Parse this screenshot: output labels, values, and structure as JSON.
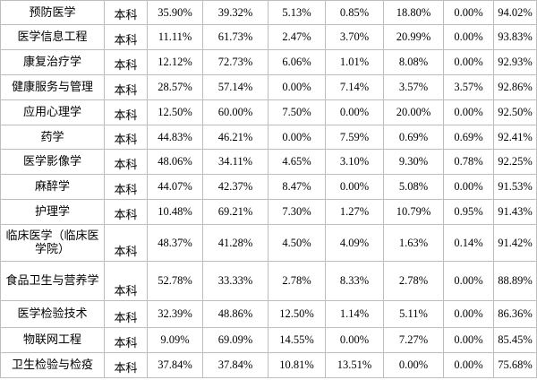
{
  "rows": [
    {
      "major": "预防医学",
      "degree": "本科",
      "c1": "35.90%",
      "c2": "39.32%",
      "c3": "5.13%",
      "c4": "0.85%",
      "c5": "18.80%",
      "c6": "0.00%",
      "total": "94.02%"
    },
    {
      "major": "医学信息工程",
      "degree": "本科",
      "c1": "11.11%",
      "c2": "61.73%",
      "c3": "2.47%",
      "c4": "3.70%",
      "c5": "20.99%",
      "c6": "0.00%",
      "total": "93.83%"
    },
    {
      "major": "康复治疗学",
      "degree": "本科",
      "c1": "12.12%",
      "c2": "72.73%",
      "c3": "6.06%",
      "c4": "1.01%",
      "c5": "8.08%",
      "c6": "0.00%",
      "total": "92.93%"
    },
    {
      "major": "健康服务与管理",
      "degree": "本科",
      "c1": "28.57%",
      "c2": "57.14%",
      "c3": "0.00%",
      "c4": "7.14%",
      "c5": "3.57%",
      "c6": "3.57%",
      "total": "92.86%"
    },
    {
      "major": "应用心理学",
      "degree": "本科",
      "c1": "12.50%",
      "c2": "60.00%",
      "c3": "7.50%",
      "c4": "0.00%",
      "c5": "20.00%",
      "c6": "0.00%",
      "total": "92.50%"
    },
    {
      "major": "药学",
      "degree": "本科",
      "c1": "44.83%",
      "c2": "46.21%",
      "c3": "0.00%",
      "c4": "7.59%",
      "c5": "0.69%",
      "c6": "0.69%",
      "total": "92.41%"
    },
    {
      "major": "医学影像学",
      "degree": "本科",
      "c1": "48.06%",
      "c2": "34.11%",
      "c3": "4.65%",
      "c4": "3.10%",
      "c5": "9.30%",
      "c6": "0.78%",
      "total": "92.25%"
    },
    {
      "major": "麻醉学",
      "degree": "本科",
      "c1": "44.07%",
      "c2": "42.37%",
      "c3": "8.47%",
      "c4": "0.00%",
      "c5": "5.08%",
      "c6": "0.00%",
      "total": "91.53%"
    },
    {
      "major": "护理学",
      "degree": "本科",
      "c1": "10.48%",
      "c2": "69.21%",
      "c3": "7.30%",
      "c4": "1.27%",
      "c5": "10.79%",
      "c6": "0.95%",
      "total": "91.43%"
    },
    {
      "major": "临床医学（临床医学院）",
      "degree": "本科",
      "c1": "48.37%",
      "c2": "41.28%",
      "c3": "4.50%",
      "c4": "4.09%",
      "c5": "1.63%",
      "c6": "0.14%",
      "total": "91.42%"
    },
    {
      "major": "食品卫生与营养学",
      "degree": "本科",
      "c1": "52.78%",
      "c2": "33.33%",
      "c3": "2.78%",
      "c4": "8.33%",
      "c5": "2.78%",
      "c6": "0.00%",
      "total": "88.89%"
    },
    {
      "major": "医学检验技术",
      "degree": "本科",
      "c1": "32.39%",
      "c2": "48.86%",
      "c3": "12.50%",
      "c4": "1.14%",
      "c5": "5.11%",
      "c6": "0.00%",
      "total": "86.36%"
    },
    {
      "major": "物联网工程",
      "degree": "本科",
      "c1": "9.09%",
      "c2": "69.09%",
      "c3": "14.55%",
      "c4": "0.00%",
      "c5": "7.27%",
      "c6": "0.00%",
      "total": "85.45%"
    },
    {
      "major": "卫生检验与检疫",
      "degree": "本科",
      "c1": "37.84%",
      "c2": "37.84%",
      "c3": "10.81%",
      "c4": "13.51%",
      "c5": "0.00%",
      "c6": "0.00%",
      "total": "75.68%"
    }
  ]
}
